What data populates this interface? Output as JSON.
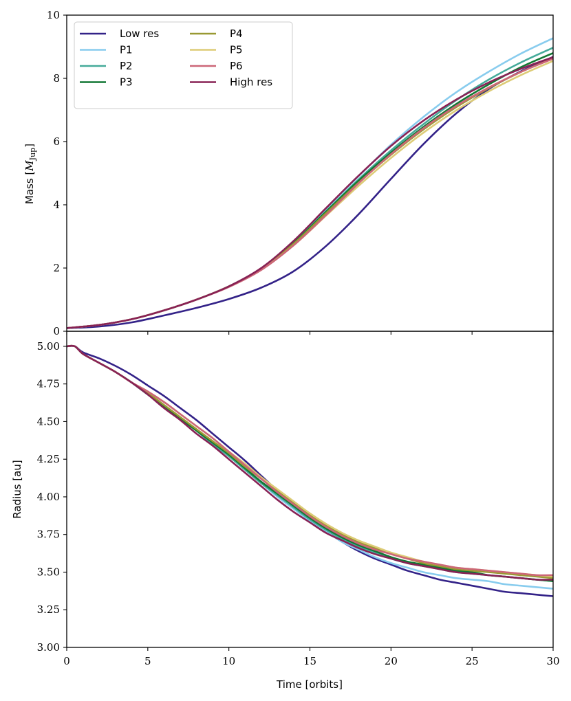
{
  "chart_data": [
    {
      "type": "line",
      "title": "",
      "xlabel": "",
      "ylabel": "Mass [",
      "ylabel_symbol": "M",
      "ylabel_subscript": "Jup",
      "ylabel_close": "]",
      "xlim": [
        0,
        30
      ],
      "ylim": [
        0,
        10
      ],
      "yticks": [
        "0",
        "2",
        "4",
        "6",
        "8",
        "10"
      ],
      "grid": false,
      "legend": "top-left",
      "series": [
        {
          "name": "Low res",
          "color": "#332288",
          "x": [
            0,
            2,
            4,
            6,
            8,
            10,
            12,
            14,
            16,
            18,
            20,
            22,
            24,
            26,
            28,
            30
          ],
          "y": [
            0.1,
            0.15,
            0.28,
            0.5,
            0.74,
            1.02,
            1.38,
            1.9,
            2.7,
            3.7,
            4.82,
            5.92,
            6.88,
            7.65,
            8.22,
            8.68
          ]
        },
        {
          "name": "P1",
          "color": "#88CCEE",
          "x": [
            0,
            2,
            4,
            6,
            8,
            10,
            12,
            14,
            16,
            18,
            20,
            22,
            24,
            26,
            28,
            30
          ],
          "y": [
            0.1,
            0.2,
            0.38,
            0.66,
            1.0,
            1.42,
            1.98,
            2.82,
            3.88,
            4.9,
            5.9,
            6.78,
            7.55,
            8.2,
            8.78,
            9.27
          ]
        },
        {
          "name": "P2",
          "color": "#44AA99",
          "x": [
            0,
            2,
            4,
            6,
            8,
            10,
            12,
            14,
            16,
            18,
            20,
            22,
            24,
            26,
            28,
            30
          ],
          "y": [
            0.1,
            0.2,
            0.38,
            0.66,
            1.0,
            1.42,
            1.98,
            2.8,
            3.8,
            4.8,
            5.72,
            6.55,
            7.3,
            7.95,
            8.5,
            8.97
          ]
        },
        {
          "name": "P3",
          "color": "#117733",
          "x": [
            0,
            2,
            4,
            6,
            8,
            10,
            12,
            14,
            16,
            18,
            20,
            22,
            24,
            26,
            28,
            30
          ],
          "y": [
            0.1,
            0.2,
            0.38,
            0.66,
            1.0,
            1.42,
            1.98,
            2.79,
            3.78,
            4.76,
            5.65,
            6.46,
            7.18,
            7.8,
            8.35,
            8.8
          ]
        },
        {
          "name": "P4",
          "color": "#999933",
          "x": [
            0,
            2,
            4,
            6,
            8,
            10,
            12,
            14,
            16,
            18,
            20,
            22,
            24,
            26,
            28,
            30
          ],
          "y": [
            0.1,
            0.2,
            0.38,
            0.66,
            1.0,
            1.42,
            1.97,
            2.77,
            3.74,
            4.7,
            5.58,
            6.38,
            7.08,
            7.68,
            8.2,
            8.63
          ]
        },
        {
          "name": "P5",
          "color": "#DDCC77",
          "x": [
            0,
            2,
            4,
            6,
            8,
            10,
            12,
            14,
            16,
            18,
            20,
            22,
            24,
            26,
            28,
            30
          ],
          "y": [
            0.1,
            0.2,
            0.38,
            0.66,
            1.0,
            1.42,
            1.95,
            2.72,
            3.66,
            4.6,
            5.48,
            6.28,
            6.98,
            7.58,
            8.1,
            8.55
          ]
        },
        {
          "name": "P6",
          "color": "#CC6677",
          "x": [
            0,
            2,
            4,
            6,
            8,
            10,
            12,
            14,
            16,
            18,
            20,
            22,
            24,
            26,
            28,
            30
          ],
          "y": [
            0.1,
            0.2,
            0.38,
            0.66,
            1.0,
            1.4,
            1.94,
            2.72,
            3.68,
            4.68,
            5.6,
            6.42,
            7.12,
            7.7,
            8.2,
            8.62
          ]
        },
        {
          "name": "High res",
          "color": "#882255",
          "x": [
            0,
            2,
            4,
            6,
            8,
            10,
            12,
            14,
            16,
            18,
            20,
            22,
            24,
            26,
            28,
            30
          ],
          "y": [
            0.1,
            0.2,
            0.38,
            0.66,
            1.0,
            1.42,
            2.0,
            2.86,
            3.9,
            4.92,
            5.86,
            6.66,
            7.32,
            7.86,
            8.3,
            8.67
          ]
        }
      ]
    },
    {
      "type": "line",
      "title": "",
      "xlabel": "Time [orbits]",
      "ylabel": "Radius [au]",
      "xlim": [
        0,
        30
      ],
      "ylim": [
        3.0,
        5.1
      ],
      "xticks": [
        "0",
        "5",
        "10",
        "15",
        "20",
        "25",
        "30"
      ],
      "yticks": [
        "3.00",
        "3.25",
        "3.50",
        "3.75",
        "4.00",
        "4.25",
        "4.50",
        "4.75",
        "5.00"
      ],
      "grid": false,
      "legend": "none",
      "series": [
        {
          "name": "Low res",
          "color": "#332288",
          "x": [
            0,
            0.5,
            1,
            2,
            3,
            4,
            5,
            6,
            7,
            8,
            9,
            10,
            11,
            12,
            13,
            14,
            15,
            16,
            17,
            18,
            19,
            20,
            21,
            22,
            23,
            24,
            25,
            26,
            27,
            28,
            29,
            30
          ],
          "y": [
            5.0,
            5.0,
            4.96,
            4.92,
            4.87,
            4.81,
            4.74,
            4.67,
            4.59,
            4.51,
            4.42,
            4.33,
            4.24,
            4.14,
            4.04,
            3.94,
            3.85,
            3.77,
            3.7,
            3.64,
            3.59,
            3.55,
            3.51,
            3.48,
            3.45,
            3.43,
            3.41,
            3.39,
            3.37,
            3.36,
            3.35,
            3.34
          ]
        },
        {
          "name": "P1",
          "color": "#88CCEE",
          "x": [
            0,
            0.5,
            1,
            2,
            3,
            4,
            5,
            6,
            7,
            8,
            9,
            10,
            11,
            12,
            13,
            14,
            15,
            16,
            17,
            18,
            19,
            20,
            21,
            22,
            23,
            24,
            25,
            26,
            27,
            28,
            29,
            30
          ],
          "y": [
            5.0,
            5.0,
            4.95,
            4.89,
            4.83,
            4.76,
            4.68,
            4.6,
            4.52,
            4.44,
            4.35,
            4.27,
            4.18,
            4.09,
            4.0,
            3.92,
            3.84,
            3.77,
            3.7,
            3.65,
            3.6,
            3.56,
            3.53,
            3.5,
            3.48,
            3.46,
            3.45,
            3.44,
            3.42,
            3.41,
            3.4,
            3.39
          ]
        },
        {
          "name": "P2",
          "color": "#44AA99",
          "x": [
            0,
            0.5,
            1,
            2,
            3,
            4,
            5,
            6,
            7,
            8,
            9,
            10,
            11,
            12,
            13,
            14,
            15,
            16,
            17,
            18,
            19,
            20,
            21,
            22,
            23,
            24,
            25,
            26,
            27,
            28,
            29,
            30
          ],
          "y": [
            5.0,
            5.0,
            4.95,
            4.89,
            4.83,
            4.76,
            4.68,
            4.6,
            4.52,
            4.44,
            4.35,
            4.27,
            4.18,
            4.09,
            4.01,
            3.93,
            3.85,
            3.78,
            3.72,
            3.67,
            3.63,
            3.59,
            3.56,
            3.54,
            3.52,
            3.5,
            3.49,
            3.48,
            3.47,
            3.46,
            3.45,
            3.44
          ]
        },
        {
          "name": "P3",
          "color": "#117733",
          "x": [
            0,
            0.5,
            1,
            2,
            3,
            4,
            5,
            6,
            7,
            8,
            9,
            10,
            11,
            12,
            13,
            14,
            15,
            16,
            17,
            18,
            19,
            20,
            21,
            22,
            23,
            24,
            25,
            26,
            27,
            28,
            29,
            30
          ],
          "y": [
            5.0,
            5.0,
            4.95,
            4.89,
            4.83,
            4.76,
            4.68,
            4.6,
            4.52,
            4.44,
            4.36,
            4.28,
            4.19,
            4.1,
            4.02,
            3.94,
            3.86,
            3.79,
            3.73,
            3.68,
            3.64,
            3.6,
            3.57,
            3.55,
            3.53,
            3.51,
            3.5,
            3.48,
            3.47,
            3.46,
            3.45,
            3.44
          ]
        },
        {
          "name": "P4",
          "color": "#999933",
          "x": [
            0,
            0.5,
            1,
            2,
            3,
            4,
            5,
            6,
            7,
            8,
            9,
            10,
            11,
            12,
            13,
            14,
            15,
            16,
            17,
            18,
            19,
            20,
            21,
            22,
            23,
            24,
            25,
            26,
            27,
            28,
            29,
            30
          ],
          "y": [
            5.0,
            5.0,
            4.95,
            4.89,
            4.83,
            4.76,
            4.69,
            4.61,
            4.53,
            4.45,
            4.37,
            4.29,
            4.2,
            4.12,
            4.04,
            3.96,
            3.88,
            3.81,
            3.75,
            3.7,
            3.66,
            3.62,
            3.59,
            3.56,
            3.54,
            3.52,
            3.51,
            3.5,
            3.49,
            3.48,
            3.47,
            3.46
          ]
        },
        {
          "name": "P5",
          "color": "#DDCC77",
          "x": [
            0,
            0.5,
            1,
            2,
            3,
            4,
            5,
            6,
            7,
            8,
            9,
            10,
            11,
            12,
            13,
            14,
            15,
            16,
            17,
            18,
            19,
            20,
            21,
            22,
            23,
            24,
            25,
            26,
            27,
            28,
            29,
            30
          ],
          "y": [
            5.0,
            5.0,
            4.95,
            4.89,
            4.83,
            4.76,
            4.7,
            4.63,
            4.55,
            4.47,
            4.39,
            4.3,
            4.22,
            4.13,
            4.05,
            3.97,
            3.89,
            3.82,
            3.76,
            3.71,
            3.67,
            3.63,
            3.6,
            3.57,
            3.55,
            3.53,
            3.52,
            3.51,
            3.5,
            3.49,
            3.48,
            3.47
          ]
        },
        {
          "name": "P6",
          "color": "#CC6677",
          "x": [
            0,
            0.5,
            1,
            2,
            3,
            4,
            5,
            6,
            7,
            8,
            9,
            10,
            11,
            12,
            13,
            14,
            15,
            16,
            17,
            18,
            19,
            20,
            21,
            22,
            23,
            24,
            25,
            26,
            27,
            28,
            29,
            30
          ],
          "y": [
            5.0,
            5.0,
            4.95,
            4.89,
            4.83,
            4.76,
            4.7,
            4.63,
            4.55,
            4.47,
            4.39,
            4.3,
            4.21,
            4.12,
            4.03,
            3.95,
            3.87,
            3.8,
            3.74,
            3.69,
            3.65,
            3.62,
            3.59,
            3.57,
            3.55,
            3.53,
            3.52,
            3.51,
            3.5,
            3.49,
            3.48,
            3.48
          ]
        },
        {
          "name": "High res",
          "color": "#882255",
          "x": [
            0,
            0.5,
            1,
            2,
            3,
            4,
            5,
            6,
            7,
            8,
            9,
            10,
            11,
            12,
            13,
            14,
            15,
            16,
            17,
            18,
            19,
            20,
            21,
            22,
            23,
            24,
            25,
            26,
            27,
            28,
            29,
            30
          ],
          "y": [
            5.0,
            5.0,
            4.95,
            4.89,
            4.83,
            4.76,
            4.68,
            4.59,
            4.51,
            4.42,
            4.34,
            4.25,
            4.16,
            4.07,
            3.98,
            3.9,
            3.83,
            3.76,
            3.71,
            3.66,
            3.62,
            3.59,
            3.56,
            3.54,
            3.52,
            3.5,
            3.49,
            3.48,
            3.47,
            3.46,
            3.45,
            3.45
          ]
        }
      ]
    }
  ]
}
